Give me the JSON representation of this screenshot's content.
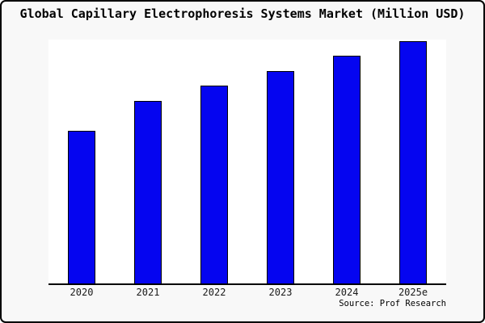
{
  "chart_data": {
    "type": "bar",
    "title": "Global Capillary Electrophoresis Systems Market (Million USD)",
    "categories": [
      "2020",
      "2021",
      "2022",
      "2023",
      "2024",
      "2025e"
    ],
    "values": [
      62.6,
      74.8,
      81.1,
      87.1,
      93.4,
      99.3
    ],
    "values_note": "no y-axis scale or data labels shown in image; values are relative bar heights as percent of plot height",
    "xlabel": "",
    "ylabel": "",
    "ylim": [
      0,
      100
    ],
    "grid": false,
    "legend_position": "none",
    "bar_color": "#0505f0",
    "bar_border_color": "#000000"
  },
  "source": "Source: Prof Research",
  "colors": {
    "background": "#f8f8f8",
    "plot_background": "#ffffff",
    "axis": "#000000",
    "text": "#000000",
    "frame_border": "#000000"
  }
}
